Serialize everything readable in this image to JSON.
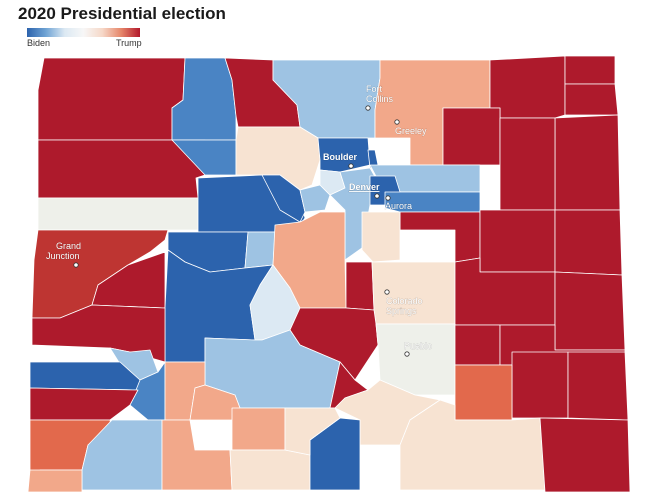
{
  "title": "2020 Presidential election",
  "legend": {
    "left_label": "Biden",
    "right_label": "Trump"
  },
  "colors": {
    "biden_strong": "#2c63ad",
    "biden_mid": "#4a84c4",
    "biden_light": "#9ec3e3",
    "biden_pale": "#dce9f3",
    "tossup": "#eef0ea",
    "trump_pale": "#f7e3d2",
    "trump_light": "#f2a88a",
    "trump_mid": "#e2694c",
    "trump_strong": "#ae1a2c",
    "trump_deep": "#be3532"
  },
  "cities": [
    {
      "name": "Fort Collins",
      "lines": [
        "Fort",
        "Collins"
      ]
    },
    {
      "name": "Greeley",
      "lines": [
        "Greeley"
      ]
    },
    {
      "name": "Boulder",
      "lines": [
        "Boulder"
      ]
    },
    {
      "name": "Denver",
      "lines": [
        "Denver"
      ]
    },
    {
      "name": "Aurora",
      "lines": [
        "Aurora"
      ]
    },
    {
      "name": "Grand Junction",
      "lines": [
        "Grand",
        "Junction"
      ]
    },
    {
      "name": "Colorado Springs",
      "lines": [
        "Colorado",
        "Springs"
      ]
    },
    {
      "name": "Pueblo",
      "lines": [
        "Pueblo"
      ]
    }
  ]
}
